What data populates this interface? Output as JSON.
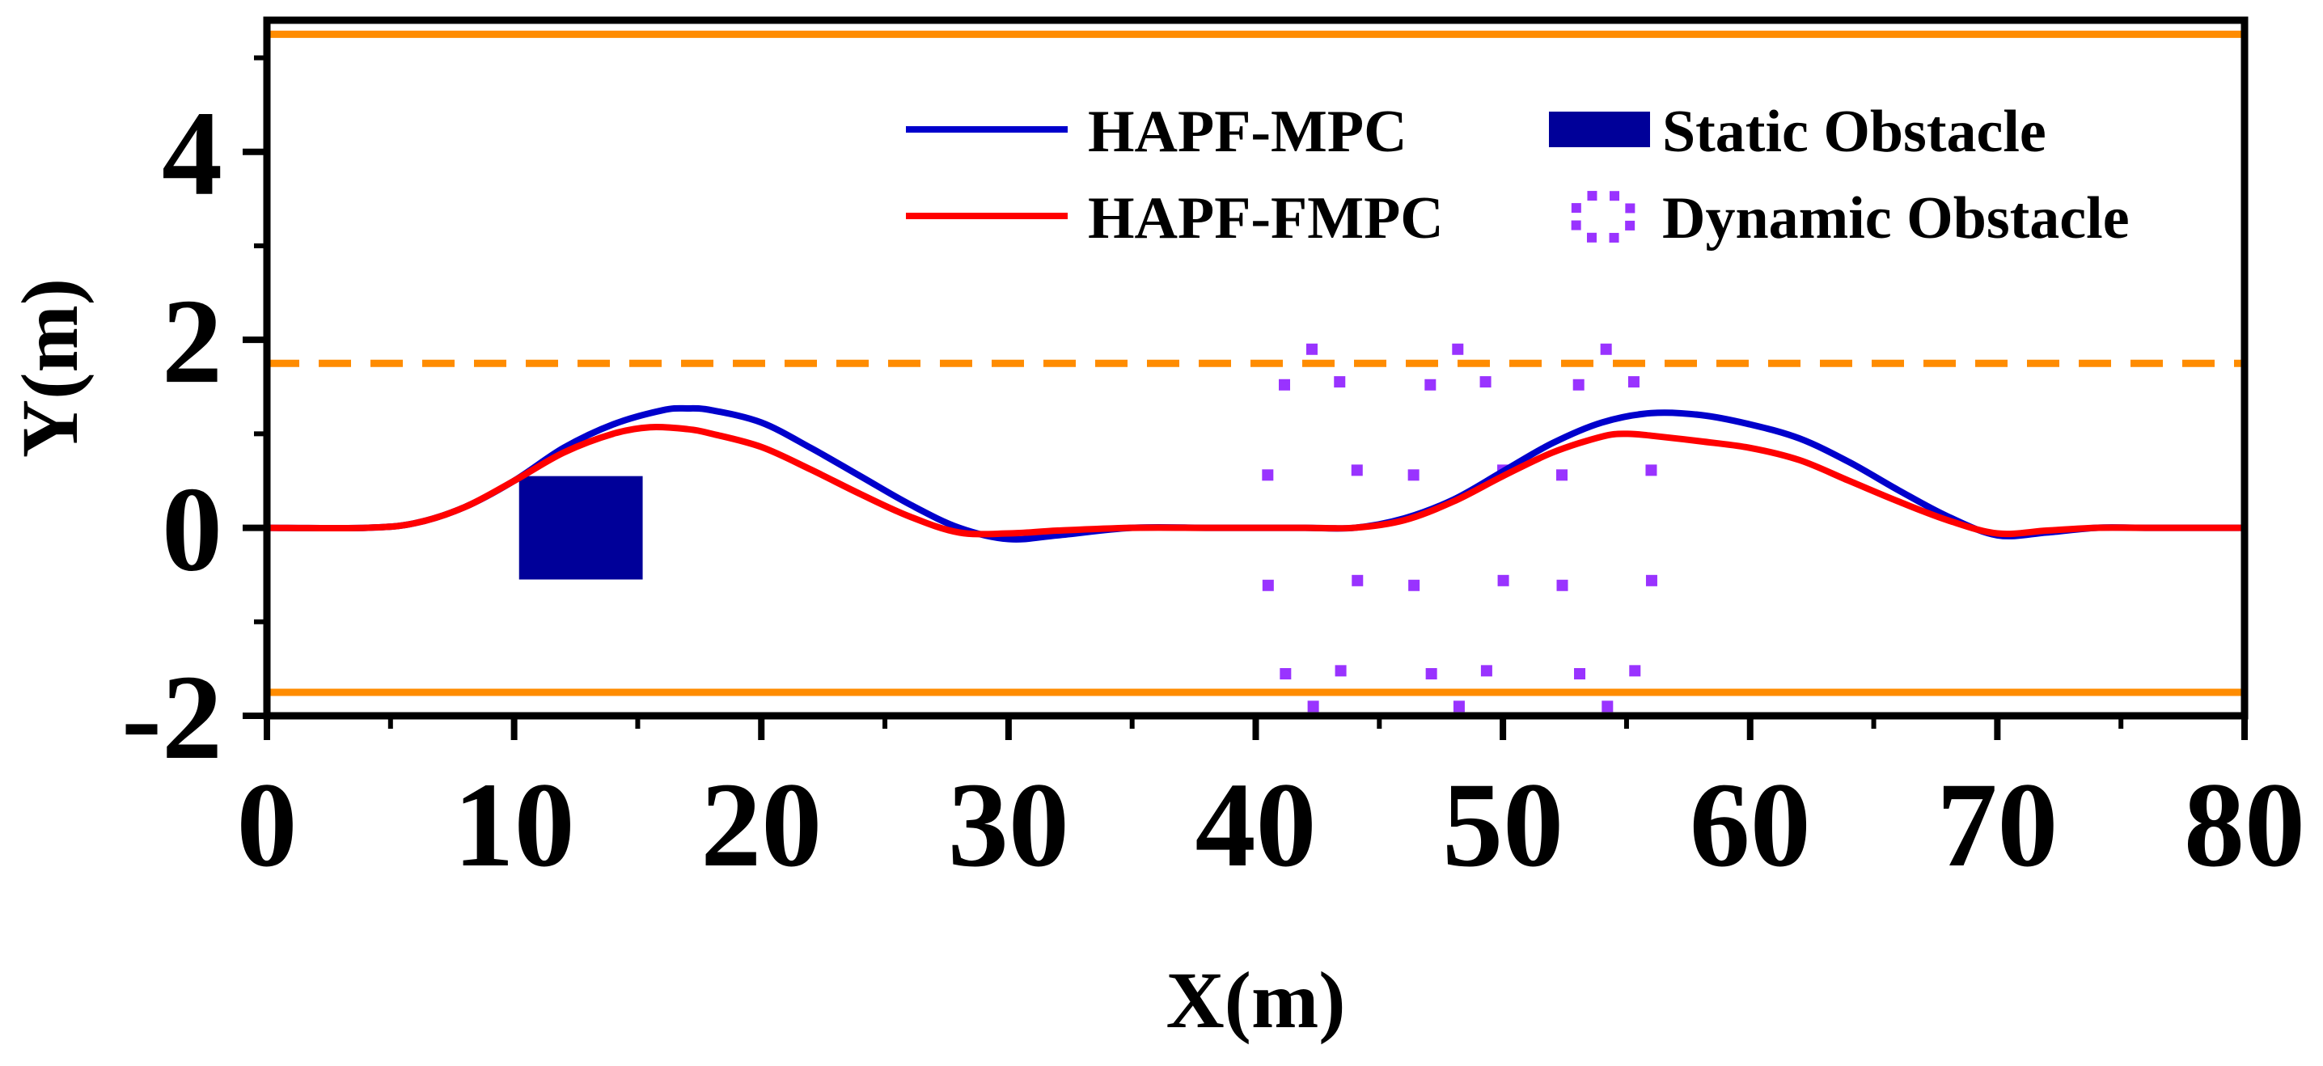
{
  "colors": {
    "hapf_mpc": "#0000cc",
    "hapf_fmpc": "#ff0000",
    "static_obstacle": "#000099",
    "dynamic_obstacle": "#9933ff",
    "lane": "#ff8c00",
    "axis": "#000000"
  },
  "chart_data": {
    "type": "line",
    "title": "",
    "xlabel": "X(m)",
    "ylabel": "Y(m)",
    "xlim": [
      0,
      80
    ],
    "ylim": [
      -2,
      5.4
    ],
    "xticks": [
      0,
      10,
      20,
      30,
      40,
      50,
      60,
      70,
      80
    ],
    "xtick_labels": [
      "0",
      "10",
      "20",
      "30",
      "40",
      "50",
      "60",
      "70",
      "80"
    ],
    "yticks": [
      -2,
      0,
      2,
      4
    ],
    "ytick_labels": [
      "-2",
      "0",
      "2",
      "4"
    ],
    "legend_position": "top-right",
    "series": [
      {
        "name": "HAPF-MPC",
        "key": "hapf_mpc",
        "x": [
          0,
          4,
          6,
          8,
          10,
          12,
          14,
          16,
          17,
          18,
          20,
          22,
          24,
          26,
          28,
          30,
          32,
          35,
          38,
          40,
          42,
          44,
          46,
          48,
          50,
          52,
          54,
          56,
          58,
          60,
          62,
          64,
          66,
          68,
          70,
          72,
          74,
          76,
          80
        ],
        "y": [
          0,
          0.0,
          0.05,
          0.22,
          0.5,
          0.85,
          1.1,
          1.25,
          1.27,
          1.25,
          1.12,
          0.85,
          0.55,
          0.25,
          0.0,
          -0.12,
          -0.08,
          0.0,
          0.0,
          0.0,
          0.0,
          0.0,
          0.1,
          0.3,
          0.6,
          0.9,
          1.12,
          1.22,
          1.2,
          1.1,
          0.95,
          0.7,
          0.4,
          0.12,
          -0.08,
          -0.05,
          0.0,
          0.0,
          0.0
        ]
      },
      {
        "name": "HAPF-FMPC",
        "key": "hapf_fmpc",
        "x": [
          0,
          4,
          6,
          8,
          10,
          12,
          14,
          15.5,
          17,
          18,
          20,
          22,
          24,
          26,
          28,
          30,
          32,
          35,
          38,
          40,
          42,
          44,
          46,
          48,
          50,
          52,
          54,
          55,
          56,
          58,
          60,
          62,
          64,
          66,
          68,
          70,
          72,
          74,
          76,
          80
        ],
        "y": [
          0,
          0.0,
          0.05,
          0.22,
          0.5,
          0.8,
          1.0,
          1.07,
          1.05,
          1.0,
          0.86,
          0.62,
          0.36,
          0.12,
          -0.05,
          -0.06,
          -0.03,
          0.0,
          0.0,
          0.0,
          0.0,
          0.0,
          0.08,
          0.28,
          0.55,
          0.8,
          0.97,
          1.0,
          0.98,
          0.92,
          0.85,
          0.72,
          0.5,
          0.28,
          0.08,
          -0.06,
          -0.03,
          0.0,
          0.0,
          0.0
        ]
      }
    ],
    "lanes": [
      {
        "name": "upper-boundary",
        "y": 5.25,
        "style": "solid"
      },
      {
        "name": "center-line",
        "y": 1.75,
        "style": "dashed"
      },
      {
        "name": "lower-boundary",
        "y": -1.75,
        "style": "solid"
      }
    ],
    "static_obstacle": {
      "name": "Static Obstacle",
      "x0": 10.2,
      "x1": 15.2,
      "y0": -0.55,
      "y1": 0.55
    },
    "dynamic_obstacles": [
      {
        "name": "Dynamic Obstacle",
        "cx": 42.3,
        "cy": 0.0,
        "r": 1.9
      },
      {
        "name": "Dynamic Obstacle",
        "cx": 48.2,
        "cy": 0.0,
        "r": 1.9
      },
      {
        "name": "Dynamic Obstacle",
        "cx": 54.2,
        "cy": 0.0,
        "r": 1.9
      }
    ],
    "legend": [
      {
        "label": "HAPF-MPC",
        "type": "line",
        "key": "hapf_mpc"
      },
      {
        "label": "HAPF-FMPC",
        "type": "line",
        "key": "hapf_fmpc"
      },
      {
        "label": "Static Obstacle",
        "type": "rect",
        "key": "static_obstacle"
      },
      {
        "label": "Dynamic Obstacle",
        "type": "dotted-circle",
        "key": "dynamic_obstacle"
      }
    ]
  }
}
